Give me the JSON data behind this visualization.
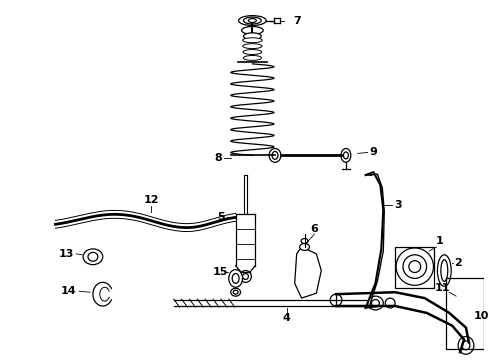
{
  "background_color": "#ffffff",
  "line_color": "#000000",
  "figsize": [
    4.9,
    3.6
  ],
  "dpi": 100,
  "label_fontsize": 8,
  "label_fontweight": "bold"
}
